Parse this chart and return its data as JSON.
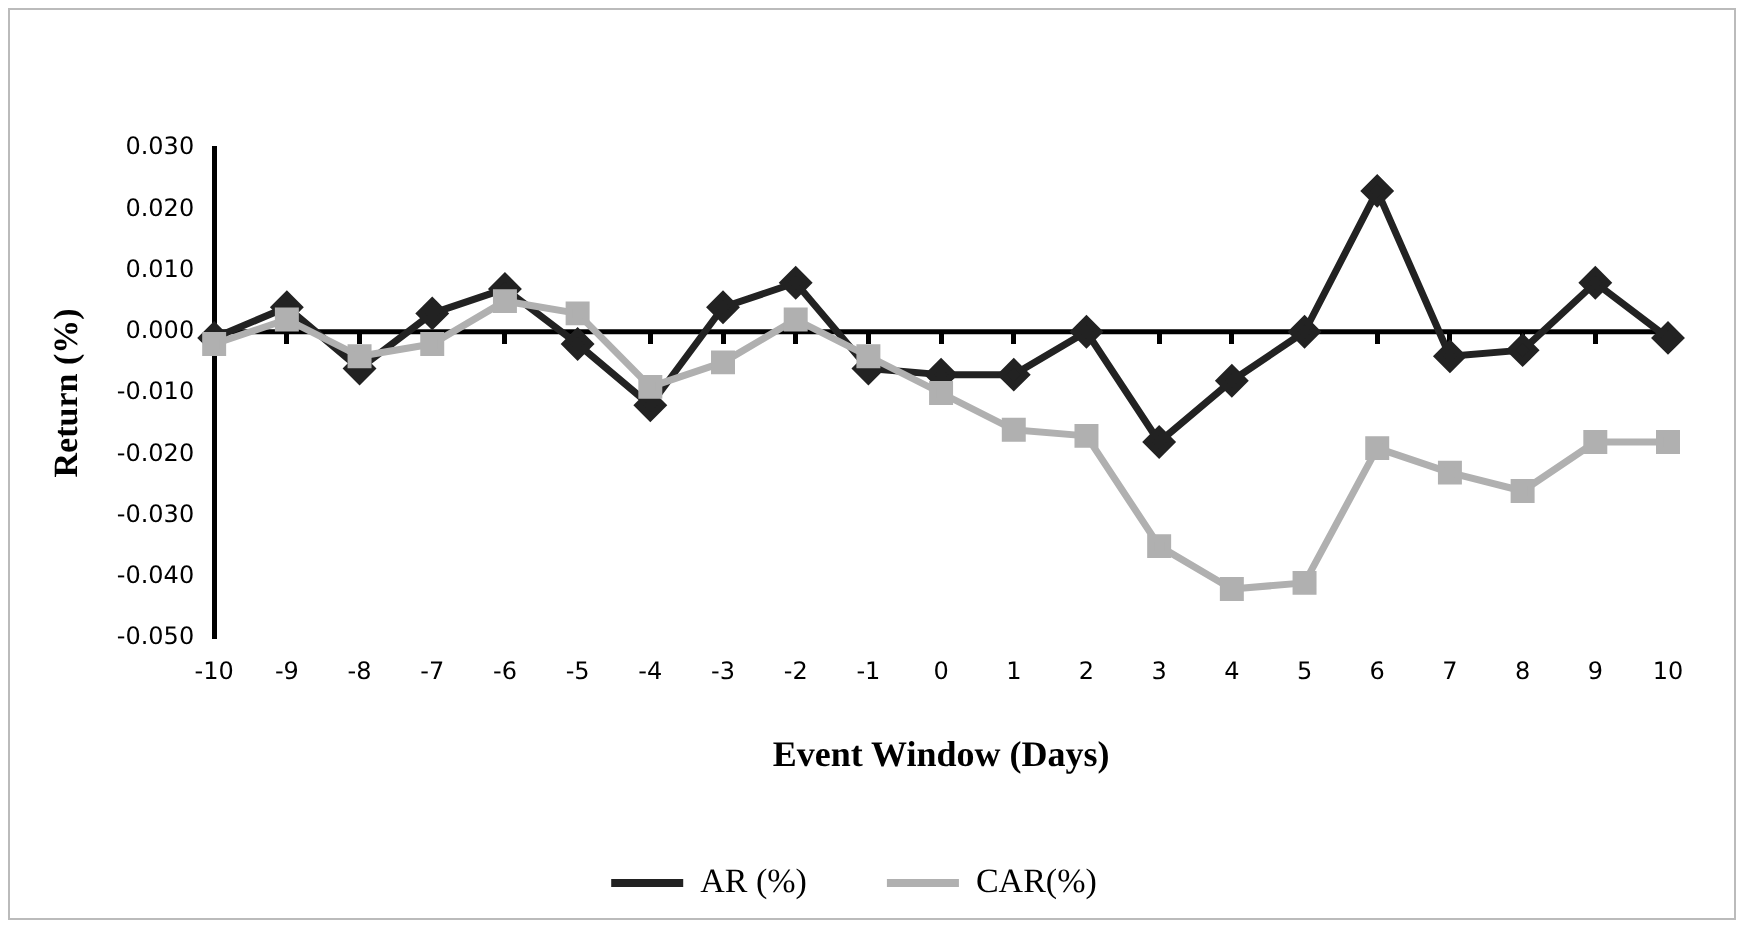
{
  "chart_data": {
    "type": "line",
    "xlabel": "Event Window (Days)",
    "ylabel": "Return (%)",
    "categories": [
      "-10",
      "-9",
      "-8",
      "-7",
      "-6",
      "-5",
      "-4",
      "-3",
      "-2",
      "-1",
      "0",
      "1",
      "2",
      "3",
      "4",
      "5",
      "6",
      "7",
      "8",
      "9",
      "10"
    ],
    "series": [
      {
        "name": "AR (%)",
        "color": "#222222",
        "marker": "diamond",
        "values": [
          -0.001,
          0.004,
          -0.006,
          0.003,
          0.007,
          -0.002,
          -0.012,
          0.004,
          0.008,
          -0.006,
          -0.007,
          -0.007,
          0.0,
          -0.018,
          -0.008,
          0.0,
          0.023,
          -0.004,
          -0.003,
          0.008,
          -0.001
        ]
      },
      {
        "name": "CAR(%)",
        "color": "#b0b0b0",
        "marker": "square",
        "values": [
          -0.002,
          0.002,
          -0.004,
          -0.002,
          0.005,
          0.003,
          -0.009,
          -0.005,
          0.002,
          -0.004,
          -0.01,
          -0.016,
          -0.017,
          -0.035,
          -0.042,
          -0.041,
          -0.019,
          -0.023,
          -0.026,
          -0.018,
          -0.018
        ]
      }
    ],
    "ylim": [
      -0.05,
      0.03
    ],
    "yticks": [
      {
        "value": -0.05,
        "label": "-0.050"
      },
      {
        "value": -0.04,
        "label": "-0.040"
      },
      {
        "value": -0.03,
        "label": "-0.030"
      },
      {
        "value": -0.02,
        "label": "-0.020"
      },
      {
        "value": -0.01,
        "label": "-0.010"
      },
      {
        "value": 0,
        "label": "0.000"
      },
      {
        "value": 0.01,
        "label": "0.010"
      },
      {
        "value": 0.02,
        "label": "0.020"
      },
      {
        "value": 0.03,
        "label": "0.030"
      }
    ],
    "ref_lines": [
      {
        "axis": "y",
        "value": 0,
        "color": "#000000"
      }
    ],
    "grid": false,
    "legend": "bottom"
  }
}
